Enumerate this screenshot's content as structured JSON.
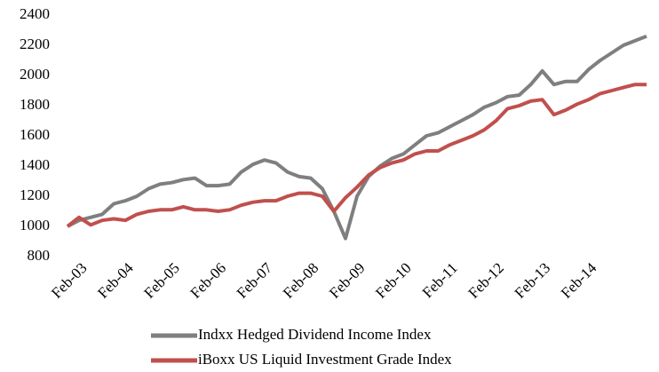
{
  "chart_data": {
    "type": "line",
    "categories": [
      "Feb-03",
      null,
      null,
      null,
      "Feb-04",
      null,
      null,
      null,
      "Feb-05",
      null,
      null,
      null,
      "Feb-06",
      null,
      null,
      null,
      "Feb-07",
      null,
      null,
      null,
      "Feb-08",
      null,
      null,
      null,
      "Feb-09",
      null,
      null,
      null,
      "Feb-10",
      null,
      null,
      null,
      "Feb-11",
      null,
      null,
      null,
      "Feb-12",
      null,
      null,
      null,
      "Feb-13",
      null,
      null,
      null,
      "Feb-14",
      null,
      null,
      null,
      null,
      null,
      null
    ],
    "series": [
      {
        "name": "Indxx Hedged Dividend Income Index",
        "color": "#7f7f7f",
        "values": [
          1000,
          1040,
          1060,
          1080,
          1150,
          1170,
          1200,
          1250,
          1280,
          1290,
          1310,
          1320,
          1270,
          1270,
          1280,
          1360,
          1410,
          1440,
          1420,
          1360,
          1330,
          1320,
          1250,
          1100,
          920,
          1200,
          1330,
          1400,
          1450,
          1480,
          1540,
          1600,
          1620,
          1660,
          1700,
          1740,
          1790,
          1820,
          1860,
          1870,
          1940,
          2030,
          1940,
          1960,
          1960,
          2040,
          2100,
          2150,
          2200,
          2230,
          2260
        ]
      },
      {
        "name": "iBoxx US Liquid Investment Grade Index",
        "color": "#c0504d",
        "values": [
          1000,
          1060,
          1010,
          1040,
          1050,
          1040,
          1080,
          1100,
          1110,
          1110,
          1130,
          1110,
          1110,
          1100,
          1110,
          1140,
          1160,
          1170,
          1170,
          1200,
          1220,
          1220,
          1200,
          1100,
          1190,
          1260,
          1340,
          1390,
          1420,
          1440,
          1480,
          1500,
          1500,
          1540,
          1570,
          1600,
          1640,
          1700,
          1780,
          1800,
          1830,
          1840,
          1740,
          1770,
          1810,
          1840,
          1880,
          1900,
          1920,
          1940,
          1940
        ]
      }
    ],
    "ylim": [
      800,
      2400
    ],
    "yticks": [
      800,
      1000,
      1200,
      1400,
      1600,
      1800,
      2000,
      2200,
      2400
    ]
  }
}
